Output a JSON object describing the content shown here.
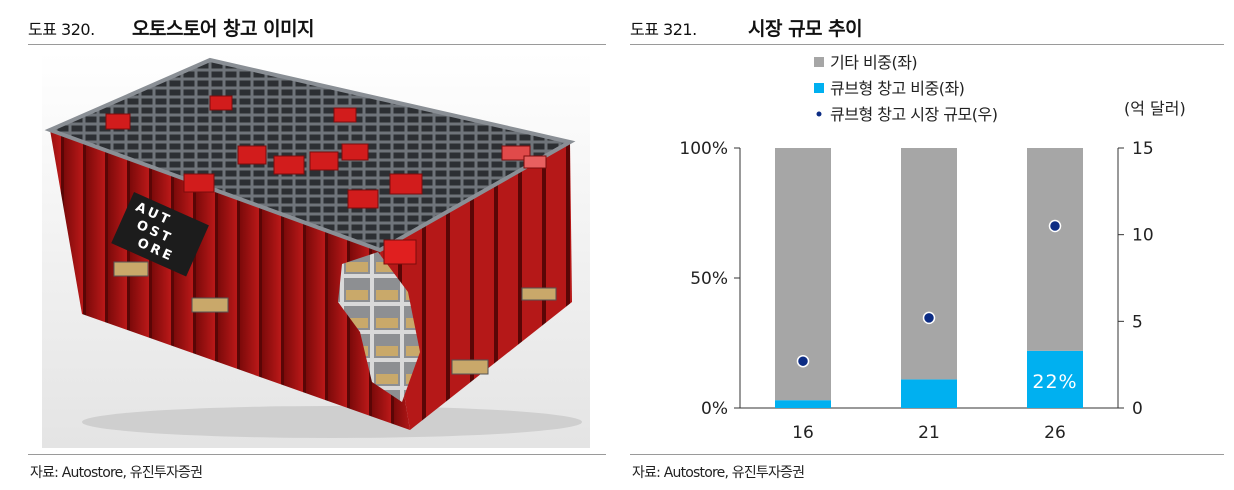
{
  "left_figure": {
    "number": "도표 320.",
    "title": "오토스토어 창고 이미지",
    "source": "자료: Autostore, 유진투자증권",
    "image_sign_text": "AUTOSTORE"
  },
  "right_figure": {
    "number": "도표 321.",
    "title": "시장 규모 추이",
    "source": "자료: Autostore, 유진투자증권"
  },
  "colors": {
    "other": "#a6a6a6",
    "cube": "#00b0f0",
    "dot": "#0c2c84"
  },
  "chart_data": {
    "type": "bar",
    "stacked": true,
    "categories": [
      "16",
      "21",
      "26"
    ],
    "series": [
      {
        "name": "기타 비중(좌)",
        "axis": "left",
        "values": [
          97,
          89,
          78
        ]
      },
      {
        "name": "큐브형 창고 비중(좌)",
        "axis": "left",
        "values": [
          3,
          11,
          22
        ]
      },
      {
        "name": "큐브형 창고 시장 규모(우)",
        "axis": "right",
        "type": "scatter",
        "values": [
          2.7,
          5.2,
          10.5
        ]
      }
    ],
    "data_labels": [
      {
        "series": "큐브형 창고 비중(좌)",
        "category": "26",
        "text": "22%"
      }
    ],
    "y_left": {
      "ticks": [
        "0%",
        "50%",
        "100%"
      ],
      "tick_values": [
        0,
        50,
        100
      ],
      "range": [
        0,
        100
      ]
    },
    "y_right": {
      "label": "(억 달러)",
      "ticks": [
        "0",
        "5",
        "10",
        "15"
      ],
      "tick_values": [
        0,
        5,
        10,
        15
      ],
      "range": [
        0,
        15
      ]
    },
    "legend_position": "top",
    "grid": false
  }
}
